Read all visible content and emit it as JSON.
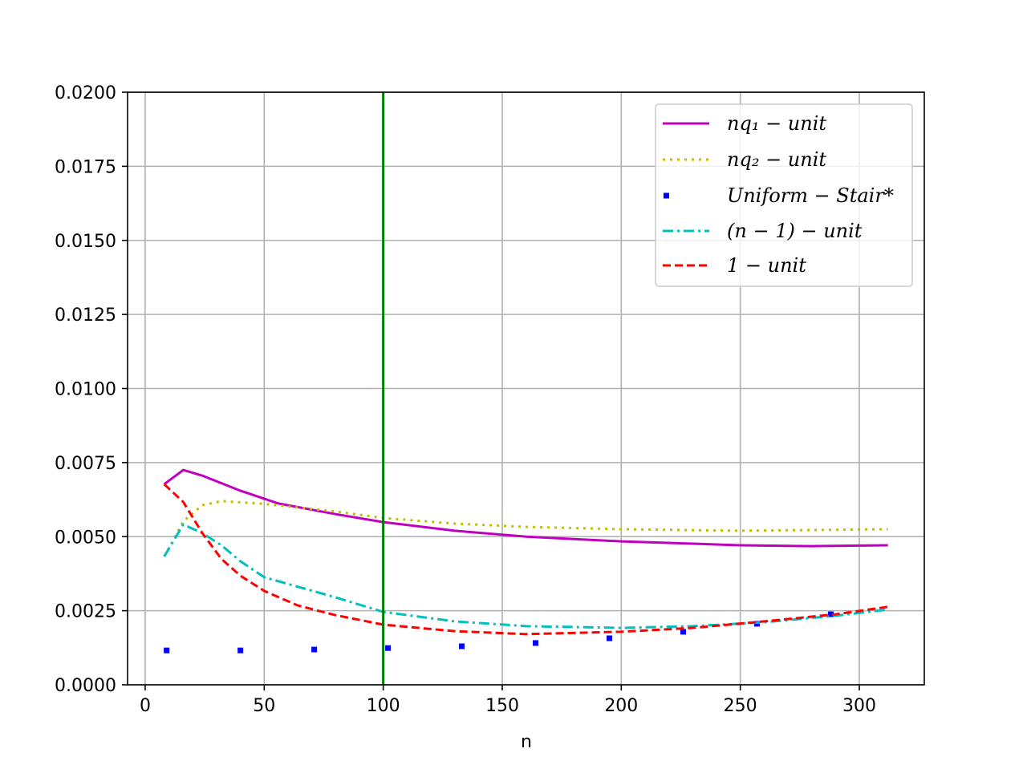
{
  "chart_data": {
    "type": "line",
    "x_label": "n",
    "xlim": [
      -7.4,
      327.3
    ],
    "ylim": [
      0,
      0.02
    ],
    "xticks": [
      0,
      50,
      100,
      150,
      200,
      250,
      300
    ],
    "yticks": [
      {
        "value": 0,
        "label": "0.0000"
      },
      {
        "value": 0.0025,
        "label": "0.0025"
      },
      {
        "value": 0.005,
        "label": "0.0050"
      },
      {
        "value": 0.0075,
        "label": "0.0075"
      },
      {
        "value": 0.01,
        "label": "0.0100"
      },
      {
        "value": 0.0125,
        "label": "0.0125"
      },
      {
        "value": 0.015,
        "label": "0.0150"
      },
      {
        "value": 0.0175,
        "label": "0.0175"
      },
      {
        "value": 0.02,
        "label": "0.0200"
      }
    ],
    "grid": true,
    "legend": "upper right",
    "vline": {
      "x": 100,
      "color": "#008000"
    },
    "series": [
      {
        "name": "nq₁ − unit",
        "color": "#bf00bf",
        "style": "solid",
        "x": [
          8,
          16,
          24,
          40,
          56,
          80,
          100,
          130,
          160,
          200,
          250,
          280,
          312
        ],
        "values": [
          0.00677,
          0.00725,
          0.00706,
          0.00655,
          0.00612,
          0.00576,
          0.00549,
          0.0052,
          0.005,
          0.00484,
          0.00471,
          0.00468,
          0.00471
        ]
      },
      {
        "name": "nq₂ − unit",
        "color": "#bfbf00",
        "style": "dotted",
        "x": [
          8,
          16,
          24,
          32,
          48,
          80,
          100,
          130,
          160,
          200,
          250,
          312
        ],
        "values": [
          0.00433,
          0.00552,
          0.00606,
          0.0062,
          0.00612,
          0.00585,
          0.00563,
          0.00544,
          0.00533,
          0.00525,
          0.0052,
          0.00525
        ]
      },
      {
        "name": "Uniform − Stair*",
        "color": "#0000ff",
        "style": "markers",
        "x": [
          9,
          40,
          71,
          102,
          133,
          164,
          195,
          226,
          257,
          288
        ],
        "values": [
          0.00116,
          0.00116,
          0.00119,
          0.00124,
          0.0013,
          0.00141,
          0.00157,
          0.00179,
          0.00206,
          0.00238
        ]
      },
      {
        "name": "(n − 1) − unit",
        "color": "#00bfbf",
        "style": "dashdot",
        "x": [
          8,
          16,
          24,
          32,
          40,
          50,
          80,
          100,
          130,
          160,
          200,
          230,
          260,
          290,
          312
        ],
        "values": [
          0.00433,
          0.00541,
          0.00512,
          0.00471,
          0.00417,
          0.00363,
          0.00295,
          0.00246,
          0.00214,
          0.00198,
          0.00192,
          0.00198,
          0.00211,
          0.00233,
          0.00254
        ]
      },
      {
        "name": "1 − unit",
        "color": "#ff0000",
        "style": "dashed",
        "x": [
          8,
          16,
          24,
          32,
          40,
          50,
          64,
          80,
          100,
          130,
          160,
          200,
          230,
          260,
          290,
          312
        ],
        "values": [
          0.00677,
          0.00617,
          0.00512,
          0.00425,
          0.00368,
          0.00317,
          0.00268,
          0.00235,
          0.00203,
          0.00181,
          0.00171,
          0.00179,
          0.00192,
          0.00214,
          0.00238,
          0.00263
        ]
      }
    ]
  }
}
